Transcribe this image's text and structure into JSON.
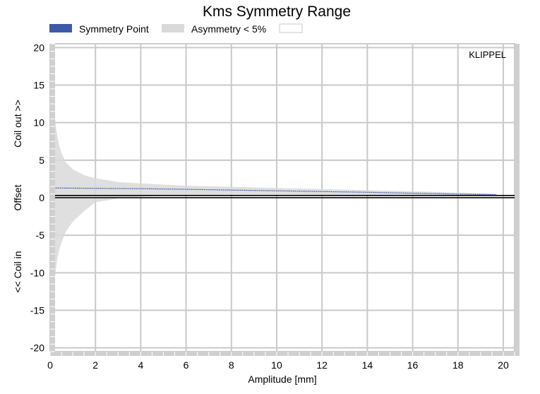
{
  "chart_data": {
    "type": "area",
    "title": "Kms Symmetry Range",
    "xlabel": "Amplitude [mm]",
    "ylabel_parts": [
      "<< Coil in",
      "Offset",
      "Coil out >>"
    ],
    "xlim": [
      0,
      20.5
    ],
    "ylim": [
      -20.5,
      20.5
    ],
    "x_ticks": [
      0,
      2,
      4,
      6,
      8,
      10,
      12,
      14,
      16,
      18,
      20
    ],
    "y_ticks": [
      20,
      15,
      10,
      5,
      0,
      -5,
      -10,
      -15,
      -20
    ],
    "grid": true,
    "legend": {
      "position": "top",
      "entries": [
        {
          "label": "Symmetry Point",
          "color": "#3c5aa8"
        },
        {
          "label": "Asymmetry < 5%",
          "color": "#d9d9d9"
        },
        {
          "label": "",
          "color": "#ffffff"
        }
      ]
    },
    "brand": "KLIPPEL",
    "series": [
      {
        "name": "Symmetry Point",
        "color": "#3c5aa8",
        "x": [
          0.05,
          2,
          4,
          6,
          8,
          10,
          12,
          14,
          16,
          18,
          19.7
        ],
        "y": [
          1.3,
          1.25,
          1.2,
          1.12,
          1.02,
          0.92,
          0.82,
          0.72,
          0.6,
          0.48,
          0.4
        ]
      },
      {
        "name": "Asymmetry < 5%",
        "color": "#d9d9d9",
        "x": [
          0.05,
          0.1,
          0.15,
          0.2,
          0.3,
          0.4,
          0.5,
          0.7,
          1.0,
          1.5,
          2,
          3,
          4,
          6,
          8,
          10,
          12,
          14,
          16,
          18,
          19.7
        ],
        "y_upper": [
          20,
          16,
          13,
          11,
          8.5,
          7,
          6,
          4.7,
          3.8,
          3.0,
          2.6,
          2.1,
          1.9,
          1.6,
          1.45,
          1.3,
          1.15,
          1.0,
          0.85,
          0.7,
          0.55
        ],
        "y_lower": [
          -20,
          -16,
          -13,
          -11,
          -8.5,
          -7,
          -6,
          -4.5,
          -3.2,
          -1.8,
          -0.6,
          -0.1,
          0.15,
          0.35,
          0.4,
          0.4,
          0.38,
          0.35,
          0.3,
          0.25,
          0.25
        ]
      }
    ],
    "reference_lines": [
      0,
      0.3
    ]
  }
}
